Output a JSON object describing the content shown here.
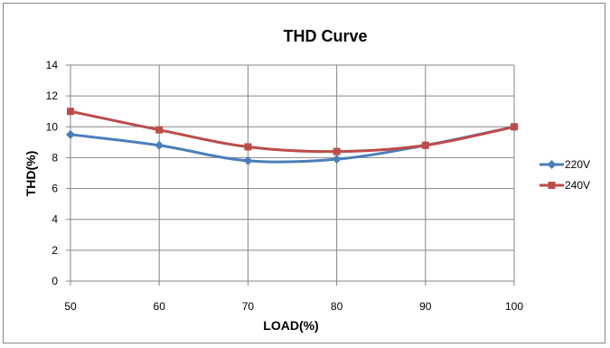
{
  "chart_data": {
    "type": "line",
    "title": "THD Curve",
    "xlabel": "LOAD(%)",
    "ylabel": "THD(%)",
    "x": [
      50,
      60,
      70,
      80,
      90,
      100
    ],
    "xlim": [
      50,
      100
    ],
    "ylim": [
      0,
      14
    ],
    "yticks": [
      0,
      2,
      4,
      6,
      8,
      10,
      12,
      14
    ],
    "xticks": [
      50,
      60,
      70,
      80,
      90,
      100
    ],
    "grid": true,
    "legend_position": "right",
    "series": [
      {
        "name": "220V",
        "values": [
          9.5,
          8.8,
          7.8,
          7.9,
          8.8,
          10.0
        ],
        "color": "#4a7ebb",
        "marker": "diamond"
      },
      {
        "name": "240V",
        "values": [
          11.0,
          9.8,
          8.7,
          8.4,
          8.8,
          10.0
        ],
        "color": "#be4b48",
        "marker": "square"
      }
    ]
  }
}
